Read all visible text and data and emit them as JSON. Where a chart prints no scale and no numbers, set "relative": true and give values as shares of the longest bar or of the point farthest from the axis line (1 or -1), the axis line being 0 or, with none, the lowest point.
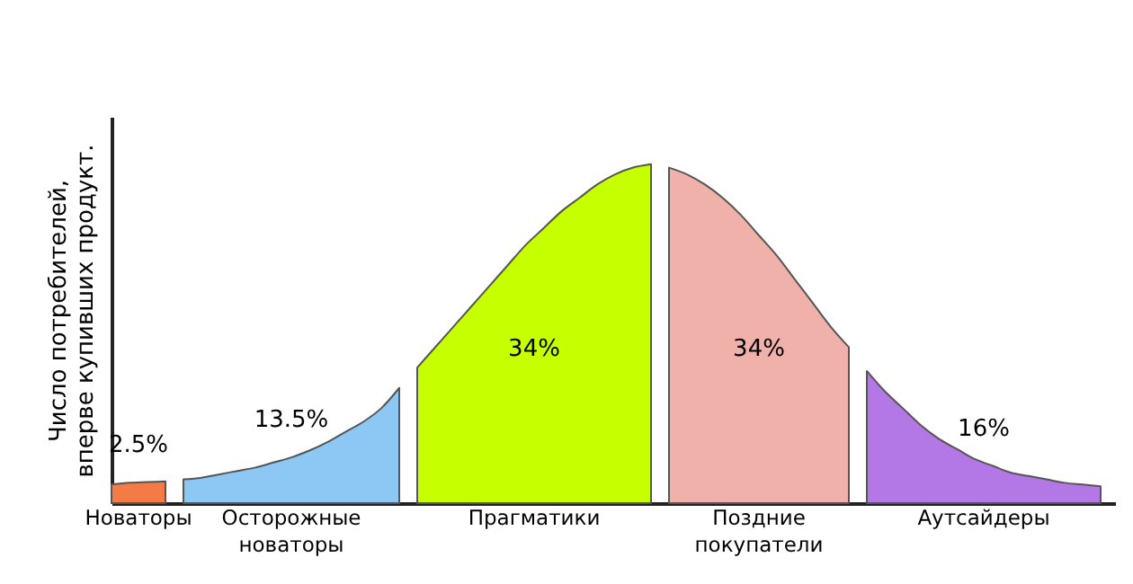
{
  "chart_data": {
    "type": "area",
    "relative": true,
    "ylabel": "Число потребителей,\nвперве купивших продукт.",
    "grid": false,
    "tick_labels": false,
    "categories": [
      null,
      null,
      null,
      null,
      null,
      null,
      null,
      null,
      null,
      null,
      null,
      null,
      null,
      null,
      null,
      null,
      null,
      null,
      null,
      null,
      null,
      null,
      null,
      null,
      null,
      null,
      null,
      null,
      null,
      null,
      null,
      null,
      null,
      null,
      null,
      null,
      null,
      null,
      null,
      null,
      null,
      null,
      null,
      null,
      null,
      null,
      null,
      null,
      null,
      null,
      null,
      null,
      null,
      null,
      null,
      null
    ],
    "series": [
      {
        "name": "Новаторы",
        "color": "#f47a46",
        "values": [
          0.055,
          0.06,
          0.062,
          0.064,
          null,
          null,
          null,
          null,
          null,
          null,
          null,
          null,
          null,
          null,
          null,
          null,
          null,
          null,
          null,
          null,
          null,
          null,
          null,
          null,
          null,
          null,
          null,
          null,
          null,
          null,
          null,
          null,
          null,
          null,
          null,
          null,
          null,
          null,
          null,
          null,
          null,
          null,
          null,
          null,
          null,
          null,
          null,
          null,
          null,
          null,
          null,
          null,
          null,
          null,
          null,
          null
        ]
      },
      {
        "name": "Осторожные\nноваторы",
        "color": "#8dc8f5",
        "values": [
          null,
          null,
          null,
          null,
          0.07,
          0.075,
          0.085,
          0.095,
          0.105,
          0.12,
          0.135,
          0.155,
          0.18,
          0.21,
          0.24,
          0.28,
          0.34,
          null,
          null,
          null,
          null,
          null,
          null,
          null,
          null,
          null,
          null,
          null,
          null,
          null,
          null,
          null,
          null,
          null,
          null,
          null,
          null,
          null,
          null,
          null,
          null,
          null,
          null,
          null,
          null,
          null,
          null,
          null,
          null,
          null,
          null,
          null,
          null,
          null,
          null,
          null
        ]
      },
      {
        "name": "Прагматики",
        "color": "#c5ff00",
        "values": [
          null,
          null,
          null,
          null,
          null,
          null,
          null,
          null,
          null,
          null,
          null,
          null,
          null,
          null,
          null,
          null,
          null,
          0.4,
          0.46,
          0.52,
          0.58,
          0.64,
          0.7,
          0.76,
          0.81,
          0.86,
          0.9,
          0.94,
          0.97,
          0.99,
          1.0,
          null,
          null,
          null,
          null,
          null,
          null,
          null,
          null,
          null,
          null,
          null,
          null,
          null,
          null,
          null,
          null,
          null,
          null,
          null,
          null,
          null,
          null,
          null,
          null,
          null
        ]
      },
      {
        "name": "Поздние\nпокупатели",
        "color": "#f0b1aa",
        "values": [
          null,
          null,
          null,
          null,
          null,
          null,
          null,
          null,
          null,
          null,
          null,
          null,
          null,
          null,
          null,
          null,
          null,
          null,
          null,
          null,
          null,
          null,
          null,
          null,
          null,
          null,
          null,
          null,
          null,
          null,
          null,
          0.99,
          0.97,
          0.94,
          0.9,
          0.85,
          0.79,
          0.73,
          0.66,
          0.59,
          0.52,
          0.46,
          null,
          null,
          null,
          null,
          null,
          null,
          null,
          null,
          null,
          null,
          null,
          null,
          null,
          null
        ]
      },
      {
        "name": "Аутсайдеры",
        "color": "#b477e6",
        "values": [
          null,
          null,
          null,
          null,
          null,
          null,
          null,
          null,
          null,
          null,
          null,
          null,
          null,
          null,
          null,
          null,
          null,
          null,
          null,
          null,
          null,
          null,
          null,
          null,
          null,
          null,
          null,
          null,
          null,
          null,
          null,
          null,
          null,
          null,
          null,
          null,
          null,
          null,
          null,
          null,
          null,
          null,
          0.39,
          0.33,
          0.28,
          0.23,
          0.19,
          0.16,
          0.13,
          0.11,
          0.09,
          0.08,
          0.07,
          0.06,
          0.055,
          0.05
        ]
      }
    ],
    "annotations": [
      "2.5%",
      "13.5%",
      "34%",
      "34%",
      "16%"
    ]
  }
}
